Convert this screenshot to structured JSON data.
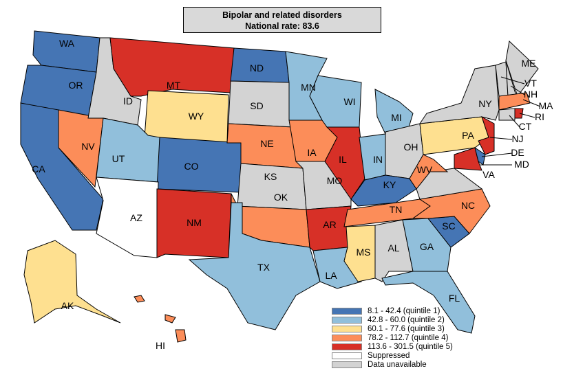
{
  "title": "Bipolar and related disorders",
  "subtitle": "National rate: 83.6",
  "legend": [
    {
      "label": "8.1 - 42.4 (quintile 1)",
      "color": "#4575b4"
    },
    {
      "label": "42.8 - 60.0 (quintile 2)",
      "color": "#91bfdb"
    },
    {
      "label": "60.1 - 77.6 (quintile 3)",
      "color": "#fee090"
    },
    {
      "label": "78.2 - 112.7 (quintile 4)",
      "color": "#fc8d59"
    },
    {
      "label": "113.6 - 301.5 (quintile 5)",
      "color": "#d73027"
    },
    {
      "label": "Suppressed",
      "color": "#ffffff"
    },
    {
      "label": "Data unavailable",
      "color": "#d3d3d3"
    }
  ],
  "states": [
    {
      "abbr": "WA",
      "class": 0
    },
    {
      "abbr": "OR",
      "class": 0
    },
    {
      "abbr": "CA",
      "class": 0
    },
    {
      "abbr": "NV",
      "class": 3
    },
    {
      "abbr": "ID",
      "class": 6
    },
    {
      "abbr": "MT",
      "class": 4
    },
    {
      "abbr": "WY",
      "class": 2
    },
    {
      "abbr": "UT",
      "class": 1
    },
    {
      "abbr": "CO",
      "class": 0
    },
    {
      "abbr": "AZ",
      "class": 5
    },
    {
      "abbr": "NM",
      "class": 4
    },
    {
      "abbr": "ND",
      "class": 0
    },
    {
      "abbr": "SD",
      "class": 6
    },
    {
      "abbr": "NE",
      "class": 3
    },
    {
      "abbr": "KS",
      "class": 6
    },
    {
      "abbr": "OK",
      "class": 3
    },
    {
      "abbr": "TX",
      "class": 1
    },
    {
      "abbr": "MN",
      "class": 1
    },
    {
      "abbr": "IA",
      "class": 3
    },
    {
      "abbr": "MO",
      "class": 6
    },
    {
      "abbr": "AR",
      "class": 4
    },
    {
      "abbr": "LA",
      "class": 1
    },
    {
      "abbr": "WI",
      "class": 1
    },
    {
      "abbr": "IL",
      "class": 4
    },
    {
      "abbr": "IN",
      "class": 1
    },
    {
      "abbr": "MI",
      "class": 1
    },
    {
      "abbr": "OH",
      "class": 6
    },
    {
      "abbr": "KY",
      "class": 0
    },
    {
      "abbr": "TN",
      "class": 3
    },
    {
      "abbr": "MS",
      "class": 2
    },
    {
      "abbr": "AL",
      "class": 6
    },
    {
      "abbr": "GA",
      "class": 1
    },
    {
      "abbr": "FL",
      "class": 1
    },
    {
      "abbr": "SC",
      "class": 0
    },
    {
      "abbr": "NC",
      "class": 3
    },
    {
      "abbr": "VA",
      "class": 6
    },
    {
      "abbr": "WV",
      "class": 3
    },
    {
      "abbr": "PA",
      "class": 2
    },
    {
      "abbr": "NY",
      "class": 6
    },
    {
      "abbr": "NJ",
      "class": 4
    },
    {
      "abbr": "MD",
      "class": 4
    },
    {
      "abbr": "DE",
      "class": 0
    },
    {
      "abbr": "VT",
      "class": 6
    },
    {
      "abbr": "NH",
      "class": 6
    },
    {
      "abbr": "ME",
      "class": 6
    },
    {
      "abbr": "MA",
      "class": 3
    },
    {
      "abbr": "CT",
      "class": 6
    },
    {
      "abbr": "RI",
      "class": 4
    },
    {
      "abbr": "AK",
      "class": 2
    },
    {
      "abbr": "HI",
      "class": 3
    }
  ]
}
